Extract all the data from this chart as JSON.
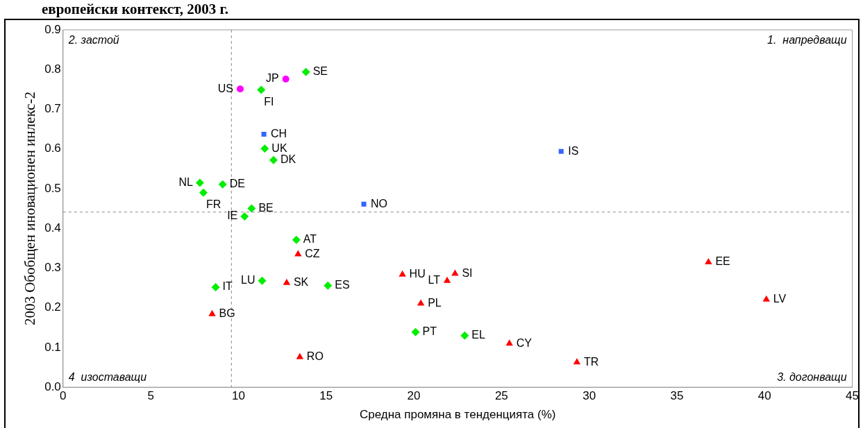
{
  "chart_data": {
    "type": "scatter",
    "title": "европейски контекст, 2003 г.",
    "xlabel": "Средна промяна в тенденцията (%)",
    "ylabel": "2003 Обобщен иновационен инлекс-2",
    "xlim": [
      0,
      45
    ],
    "xticks": [
      0,
      5,
      10,
      15,
      20,
      25,
      30,
      35,
      40,
      45
    ],
    "ylim": [
      0,
      0.9
    ],
    "yticks": [
      {
        "value": 0,
        "label": "0.0"
      },
      0.1,
      0.2,
      0.3,
      0.4,
      0.5,
      0.6,
      0.7,
      0.8,
      0.9
    ],
    "grid": false,
    "legend": false,
    "series": [
      {
        "color": "#ff00ff",
        "marker": "circle",
        "x": [
          10.1,
          12.7
        ],
        "values": [
          0.751,
          0.776
        ]
      },
      {
        "color": "#00ee00",
        "marker": "diamond",
        "x": [
          13.85,
          11.3,
          11.5,
          12.0,
          7.8,
          9.1,
          8.0,
          10.75,
          10.35,
          13.3,
          11.35,
          15.1,
          8.7,
          20.1,
          22.9
        ],
        "values": [
          0.794,
          0.749,
          0.601,
          0.572,
          0.515,
          0.511,
          0.49,
          0.45,
          0.43,
          0.371,
          0.268,
          0.256,
          0.252,
          0.139,
          0.13
        ]
      },
      {
        "color": "#3366ff",
        "marker": "square",
        "x": [
          11.45,
          17.15,
          28.4
        ],
        "values": [
          0.637,
          0.461,
          0.594
        ]
      },
      {
        "color": "#ff0000",
        "marker": "triangle",
        "x": [
          13.4,
          12.75,
          8.5,
          13.5,
          19.35,
          22.35,
          21.9,
          20.4,
          25.45,
          29.3,
          36.8,
          40.1
        ],
        "values": [
          0.335,
          0.263,
          0.184,
          0.076,
          0.284,
          0.286,
          0.268,
          0.211,
          0.11,
          0.063,
          0.315,
          0.221
        ]
      }
    ],
    "ref_lines": [
      {
        "axis": "x",
        "value": 9.6,
        "color": "#888888",
        "line_style": "dashed"
      },
      {
        "axis": "y",
        "value": 0.441,
        "color": "#888888",
        "line_style": "dashed"
      }
    ],
    "annotations": [
      "2. застой",
      "1.  напредващи",
      "3. догонващи",
      "4  изоставащи",
      {
        "text": "US",
        "x": 10.1,
        "y": 0.751
      },
      {
        "text": "JP",
        "x": 12.7,
        "y": 0.776
      },
      {
        "text": "SE",
        "x": 13.85,
        "y": 0.794
      },
      {
        "text": "FI",
        "x": 11.3,
        "y": 0.749
      },
      {
        "text": "UK",
        "x": 11.5,
        "y": 0.601
      },
      {
        "text": "DK",
        "x": 12.0,
        "y": 0.572
      },
      {
        "text": "NL",
        "x": 7.8,
        "y": 0.515
      },
      {
        "text": "DE",
        "x": 9.1,
        "y": 0.511
      },
      {
        "text": "FR",
        "x": 8.0,
        "y": 0.49
      },
      {
        "text": "BE",
        "x": 10.75,
        "y": 0.45
      },
      {
        "text": "IE",
        "x": 10.35,
        "y": 0.43
      },
      {
        "text": "AT",
        "x": 13.3,
        "y": 0.371
      },
      {
        "text": "LU",
        "x": 11.35,
        "y": 0.268
      },
      {
        "text": "ES",
        "x": 15.1,
        "y": 0.256
      },
      {
        "text": "IT",
        "x": 8.7,
        "y": 0.252
      },
      {
        "text": "PT",
        "x": 20.1,
        "y": 0.139
      },
      {
        "text": "EL",
        "x": 22.9,
        "y": 0.13
      },
      {
        "text": "CH",
        "x": 11.45,
        "y": 0.637
      },
      {
        "text": "NO",
        "x": 17.15,
        "y": 0.461
      },
      {
        "text": "IS",
        "x": 28.4,
        "y": 0.594
      },
      {
        "text": "CZ",
        "x": 13.4,
        "y": 0.335
      },
      {
        "text": "SK",
        "x": 12.75,
        "y": 0.263
      },
      {
        "text": "BG",
        "x": 8.5,
        "y": 0.184
      },
      {
        "text": "RO",
        "x": 13.5,
        "y": 0.076
      },
      {
        "text": "HU",
        "x": 19.35,
        "y": 0.284
      },
      {
        "text": "SI",
        "x": 22.35,
        "y": 0.286
      },
      {
        "text": "LT",
        "x": 21.9,
        "y": 0.268
      },
      {
        "text": "PL",
        "x": 20.4,
        "y": 0.211
      },
      {
        "text": "CY",
        "x": 25.45,
        "y": 0.11
      },
      {
        "text": "TR",
        "x": 29.3,
        "y": 0.063
      },
      {
        "text": "EE",
        "x": 36.8,
        "y": 0.315
      },
      {
        "text": "LV",
        "x": 40.1,
        "y": 0.221
      }
    ]
  }
}
